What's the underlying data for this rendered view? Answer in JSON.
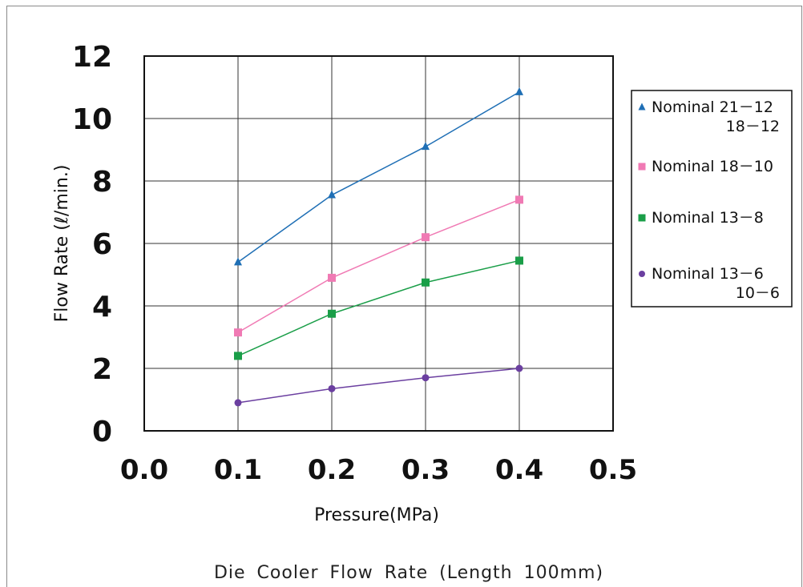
{
  "chart_data": {
    "type": "line",
    "title": "Die Cooler Flow Rate (Length 100mm)",
    "xlabel": "Pressure(MPa)",
    "ylabel": "Flow Rate (ℓ/min.)",
    "xlim": [
      0.0,
      0.5
    ],
    "ylim": [
      0,
      12
    ],
    "x_ticks": [
      "0.0",
      "0.1",
      "0.2",
      "0.3",
      "0.4",
      "0.5"
    ],
    "y_ticks": [
      "0",
      "2",
      "4",
      "6",
      "8",
      "10",
      "12"
    ],
    "grid": true,
    "legend_position": "right",
    "series": [
      {
        "name": "Nominal 21－12 / 18－12",
        "legend_line1": "Nominal 21－12",
        "legend_line2": "18－12",
        "color": "#1f6fb5",
        "marker": "triangle",
        "x": [
          0.1,
          0.2,
          0.3,
          0.4
        ],
        "y": [
          5.4,
          7.55,
          9.1,
          10.85
        ]
      },
      {
        "name": "Nominal 18－10",
        "legend_line1": "Nominal 18－10",
        "legend_line2": "",
        "color": "#f07ab4",
        "marker": "square",
        "x": [
          0.1,
          0.2,
          0.3,
          0.4
        ],
        "y": [
          3.15,
          4.9,
          6.2,
          7.4
        ]
      },
      {
        "name": "Nominal 13－8",
        "legend_line1": "Nominal 13－8",
        "legend_line2": "",
        "color": "#1a9e48",
        "marker": "square",
        "x": [
          0.1,
          0.2,
          0.3,
          0.4
        ],
        "y": [
          2.4,
          3.75,
          4.75,
          5.45
        ]
      },
      {
        "name": "Nominal 13－6 / 10－6",
        "legend_line1": "Nominal 13－6",
        "legend_line2": "10－6",
        "color": "#6b3fa0",
        "marker": "circle",
        "x": [
          0.1,
          0.2,
          0.3,
          0.4
        ],
        "y": [
          0.9,
          1.35,
          1.7,
          2.0
        ]
      }
    ]
  }
}
